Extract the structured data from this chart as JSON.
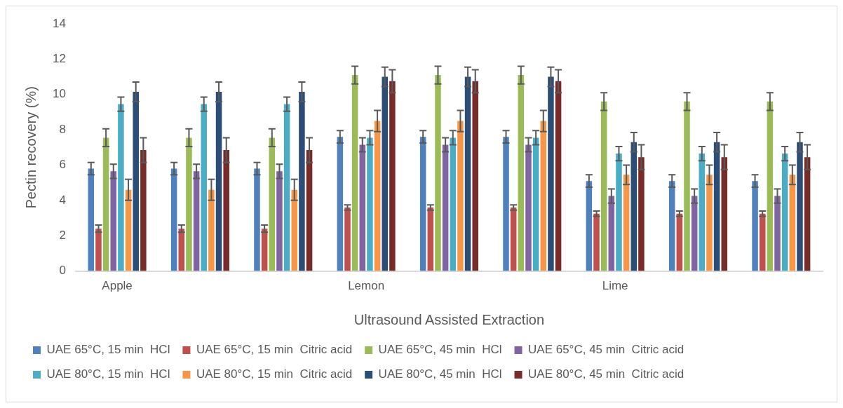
{
  "chart_data": {
    "type": "bar",
    "xlabel": "Ultrasound Assisted Extraction",
    "ylabel": "Pectin recovery (%)",
    "categories": [
      "Apple",
      null,
      null,
      "Lemon",
      null,
      null,
      "Lime",
      null,
      null
    ],
    "ylim": [
      0,
      14
    ],
    "yticks": [
      0,
      2,
      4,
      6,
      8,
      10,
      12,
      14
    ],
    "grid": false,
    "legend": "bottom",
    "series": [
      {
        "name": "UAE 65°C, 15 min  HCl",
        "color": "#4f81bd",
        "values": [
          5.8,
          5.8,
          5.8,
          7.6,
          7.6,
          7.6,
          5.1,
          5.1,
          5.1
        ],
        "errors": [
          0.35,
          0.35,
          0.35,
          0.35,
          0.35,
          0.35,
          0.35,
          0.35,
          0.35
        ]
      },
      {
        "name": "UAE 65°C, 15 min  Citric acid",
        "color": "#c0504d",
        "values": [
          2.4,
          2.4,
          2.4,
          3.6,
          3.6,
          3.6,
          3.25,
          3.25,
          3.25
        ],
        "errors": [
          0.2,
          0.2,
          0.2,
          0.15,
          0.15,
          0.15,
          0.15,
          0.15,
          0.15
        ]
      },
      {
        "name": "UAE 65°C, 45 min  HCl",
        "color": "#9bbb59",
        "values": [
          7.55,
          7.55,
          7.55,
          11.1,
          11.1,
          11.1,
          9.6,
          9.6,
          9.6
        ],
        "errors": [
          0.5,
          0.5,
          0.5,
          0.5,
          0.5,
          0.5,
          0.5,
          0.5,
          0.5
        ]
      },
      {
        "name": "UAE 65°C, 45 min  Citric acid",
        "color": "#8064a2",
        "values": [
          5.65,
          5.65,
          5.65,
          7.15,
          7.15,
          7.15,
          4.25,
          4.25,
          4.25
        ],
        "errors": [
          0.4,
          0.4,
          0.4,
          0.4,
          0.4,
          0.4,
          0.4,
          0.4,
          0.4
        ]
      },
      {
        "name": "UAE 80°C, 15 min  HCl",
        "color": "#4bacc6",
        "values": [
          9.45,
          9.45,
          9.45,
          7.55,
          7.55,
          7.55,
          6.65,
          6.65,
          6.65
        ],
        "errors": [
          0.4,
          0.4,
          0.4,
          0.4,
          0.4,
          0.4,
          0.4,
          0.4,
          0.4
        ]
      },
      {
        "name": "UAE 80°C, 15 min  Citric acid",
        "color": "#f79646",
        "values": [
          4.6,
          4.6,
          4.6,
          8.5,
          8.5,
          8.5,
          5.45,
          5.45,
          5.45
        ],
        "errors": [
          0.6,
          0.6,
          0.6,
          0.6,
          0.6,
          0.6,
          0.55,
          0.55,
          0.55
        ]
      },
      {
        "name": "UAE 80°C, 45 min  HCl",
        "color": "#2c4d75",
        "values": [
          10.15,
          10.15,
          10.15,
          11.0,
          11.0,
          11.0,
          7.3,
          7.3,
          7.3
        ],
        "errors": [
          0.55,
          0.55,
          0.55,
          0.55,
          0.55,
          0.55,
          0.55,
          0.55,
          0.55
        ]
      },
      {
        "name": "UAE 80°C, 45 min  Citric acid",
        "color": "#772c2a",
        "values": [
          6.85,
          6.85,
          6.85,
          10.75,
          10.75,
          10.75,
          6.45,
          6.45,
          6.45
        ],
        "errors": [
          0.7,
          0.7,
          0.7,
          0.65,
          0.65,
          0.65,
          0.7,
          0.7,
          0.7
        ]
      }
    ]
  }
}
